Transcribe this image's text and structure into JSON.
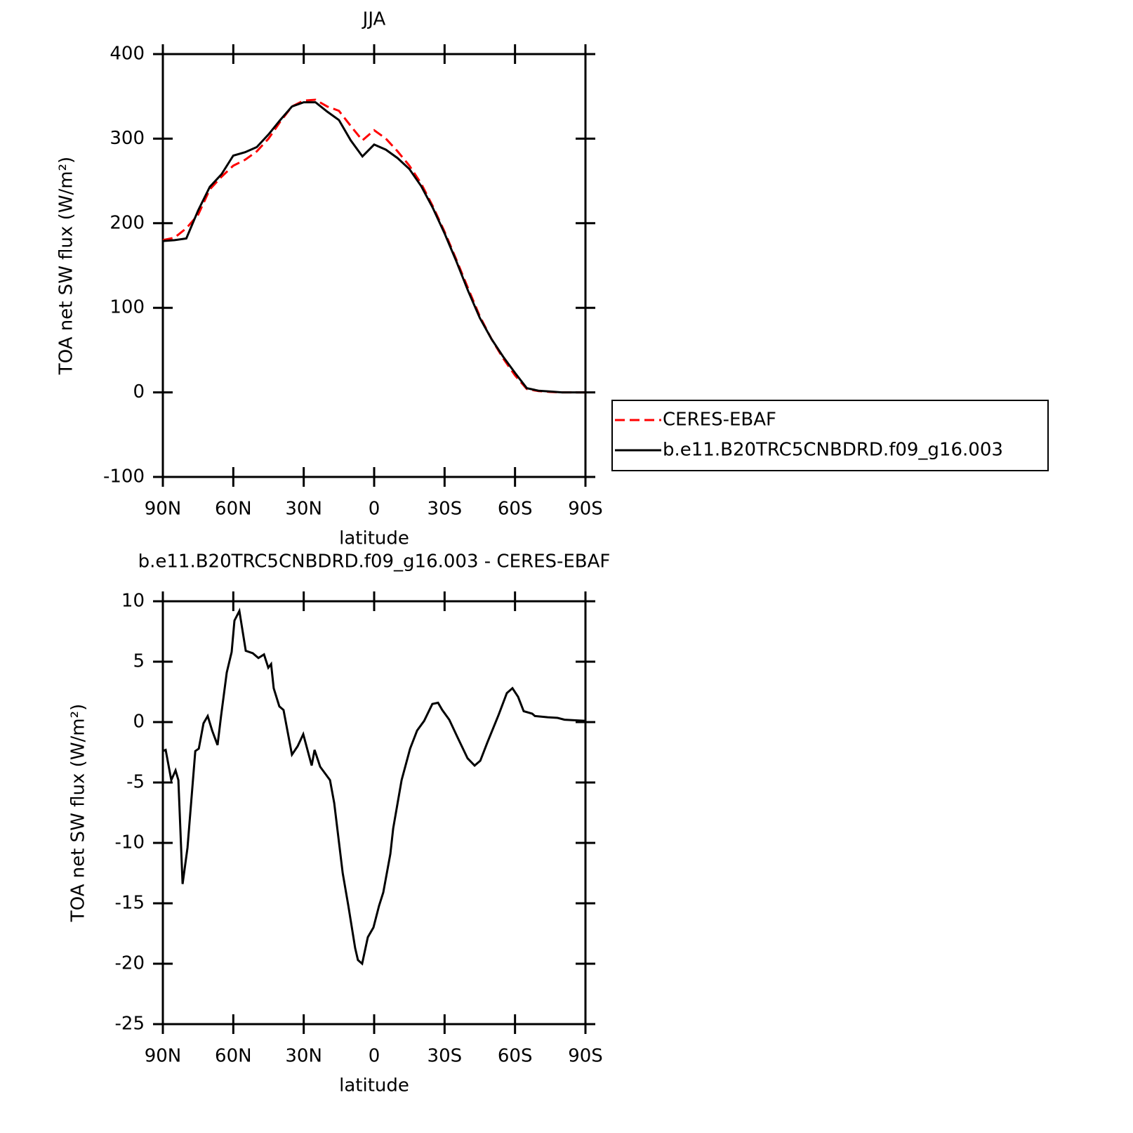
{
  "chart_data": [
    {
      "type": "line",
      "title": "JJA",
      "xlabel": "latitude",
      "ylabel": "TOA net SW flux (W/m²)",
      "xlim": [
        90,
        -90
      ],
      "xticks": [
        {
          "value": 90,
          "label": "90N"
        },
        {
          "value": 60,
          "label": "60N"
        },
        {
          "value": 30,
          "label": "30N"
        },
        0,
        {
          "value": -30,
          "label": "30S"
        },
        {
          "value": -60,
          "label": "60S"
        },
        {
          "value": -90,
          "label": "90S"
        }
      ],
      "ylim": [
        -100,
        400
      ],
      "yticks": [
        -100,
        0,
        100,
        200,
        300,
        400
      ],
      "legend": "right",
      "x": [
        90,
        85,
        80,
        75,
        70,
        65,
        60,
        55,
        50,
        45,
        40,
        35,
        30,
        25,
        20,
        15,
        10,
        5,
        0,
        -5,
        -10,
        -15,
        -20,
        -25,
        -30,
        -35,
        -40,
        -45,
        -50,
        -55,
        -60,
        -65,
        -70,
        -75,
        -80,
        -85,
        -90
      ],
      "series": [
        {
          "name": "CERES-EBAF",
          "color": "#ff0000",
          "dashed": true,
          "values": [
            180,
            183,
            194,
            210,
            240,
            255,
            268,
            275,
            285,
            300,
            320,
            338,
            345,
            346,
            338,
            333,
            315,
            298,
            310,
            300,
            285,
            268,
            247,
            220,
            190,
            157,
            123,
            90,
            63,
            40,
            20,
            4,
            1.5,
            0.5,
            0,
            0,
            0
          ]
        },
        {
          "name": "b.e11.B20TRC5CNBDRD.f09_g16.003",
          "color": "#000000",
          "dashed": false,
          "values": [
            179,
            180,
            182,
            215,
            243,
            258,
            280,
            284,
            290,
            305,
            322,
            338,
            343,
            343,
            332,
            322,
            298,
            279,
            293,
            287,
            277,
            264,
            244,
            218,
            188,
            155,
            120,
            88,
            63,
            42,
            23,
            5,
            2,
            1,
            0,
            0,
            0
          ]
        }
      ]
    },
    {
      "type": "line",
      "title": "b.e11.B20TRC5CNBDRD.f09_g16.003 - CERES-EBAF",
      "xlabel": "latitude",
      "ylabel": "TOA net SW flux (W/m²)",
      "xlim": [
        90,
        -90
      ],
      "xticks": [
        {
          "value": 90,
          "label": "90N"
        },
        {
          "value": 60,
          "label": "60N"
        },
        {
          "value": 30,
          "label": "30N"
        },
        0,
        {
          "value": -30,
          "label": "30S"
        },
        {
          "value": -60,
          "label": "60S"
        },
        {
          "value": -90,
          "label": "90S"
        }
      ],
      "ylim": [
        -25,
        10
      ],
      "yticks": [
        -25,
        -20,
        -15,
        -10,
        -5,
        0,
        5,
        10
      ],
      "x": [
        90,
        88.8,
        86.4,
        84.6,
        83.4,
        81.6,
        79.5,
        76.2,
        74.7,
        72.7,
        70.9,
        69,
        66.7,
        65.2,
        62.8,
        60.7,
        59.5,
        57.4,
        54.7,
        51.7,
        49.3,
        46.9,
        45.1,
        43.9,
        42.8,
        40.4,
        38.6,
        35,
        32.6,
        30.2,
        26.6,
        25.4,
        23,
        18.8,
        17,
        13.4,
        11,
        8.1,
        6.9,
        5.1,
        2.7,
        0.3,
        -2.1,
        -3.9,
        -6.9,
        -8.1,
        -11.7,
        -15.3,
        -18.3,
        -21.3,
        -24.8,
        -27.2,
        -29,
        -32,
        -35.6,
        -39.8,
        -42.8,
        -45.2,
        -48.2,
        -53,
        -56.5,
        -58.9,
        -61.3,
        -63.7,
        -67.3,
        -68.5,
        -73.9,
        -78.1,
        -81.1,
        -90
      ],
      "series": [
        {
          "color": "#000000",
          "dashed": false,
          "values": [
            -2.4,
            -2.3,
            -4.8,
            -4.0,
            -4.8,
            -13.4,
            -10.4,
            -2.4,
            -2.2,
            -0.1,
            0.5,
            -0.7,
            -1.9,
            0.5,
            4.1,
            5.8,
            8.4,
            9.2,
            5.9,
            5.7,
            5.3,
            5.6,
            4.5,
            4.8,
            2.8,
            1.3,
            1.0,
            -2.7,
            -2.0,
            -1.0,
            -3.6,
            -2.3,
            -3.7,
            -4.8,
            -6.7,
            -12.5,
            -15.2,
            -18.7,
            -19.7,
            -20.0,
            -17.8,
            -17.0,
            -15.2,
            -14.1,
            -10.9,
            -8.8,
            -4.8,
            -2.2,
            -0.7,
            0.1,
            1.5,
            1.6,
            1.0,
            0.2,
            -1.3,
            -3.0,
            -3.6,
            -3.2,
            -1.7,
            0.6,
            2.4,
            2.8,
            2.1,
            0.9,
            0.7,
            0.5,
            0.4,
            0.35,
            0.2,
            0.1
          ]
        }
      ]
    }
  ]
}
